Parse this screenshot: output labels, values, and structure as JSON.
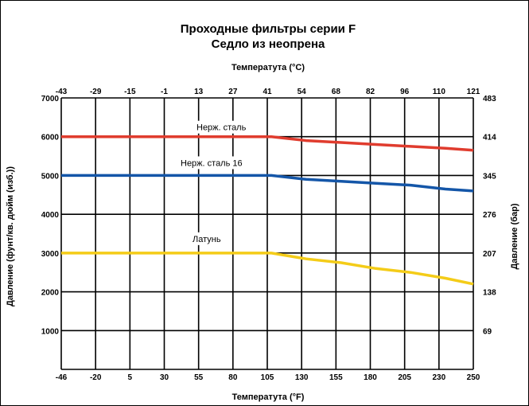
{
  "chart_data": {
    "type": "line",
    "title": "Проходные фильтры серии F",
    "subtitle": "Седло из неопрена",
    "x_top_label": "Температута (°C)",
    "x_bottom_label": "Температута (°F)",
    "y_left_label": "Давление (фунт/кв. дюйм (изб.))",
    "y_right_label": "Давление (бар)",
    "xlim": [
      -46,
      250
    ],
    "ylim": [
      0,
      7000
    ],
    "grid": true,
    "x_ticks_bottom": [
      "-46",
      "-20",
      "5",
      "30",
      "55",
      "80",
      "105",
      "130",
      "155",
      "180",
      "205",
      "230",
      "250"
    ],
    "x_ticks_top": [
      "-43",
      "-29",
      "-15",
      "-1",
      "13",
      "27",
      "41",
      "54",
      "68",
      "82",
      "96",
      "110",
      "121"
    ],
    "y_ticks_left": [
      "",
      "1000",
      "2000",
      "3000",
      "4000",
      "5000",
      "6000",
      "7000"
    ],
    "y_ticks_right": [
      "",
      "69",
      "138",
      "207",
      "276",
      "345",
      "414",
      "483"
    ],
    "series": [
      {
        "name": "Нерж. сталь",
        "color": "#e03c2e",
        "x": [
          -46,
          105,
          130,
          155,
          180,
          205,
          230,
          250
        ],
        "y": [
          6000,
          6000,
          5900,
          5850,
          5800,
          5750,
          5700,
          5650
        ]
      },
      {
        "name": "Нерж. сталь 16",
        "color": "#1456a8",
        "x": [
          -46,
          105,
          130,
          155,
          180,
          205,
          230,
          250
        ],
        "y": [
          5000,
          5000,
          4900,
          4850,
          4800,
          4750,
          4650,
          4600
        ]
      },
      {
        "name": "Латунь",
        "color": "#f4cc18",
        "x": [
          -46,
          105,
          130,
          155,
          180,
          205,
          230,
          250
        ],
        "y": [
          3000,
          3000,
          2850,
          2750,
          2600,
          2500,
          2350,
          2200
        ]
      }
    ]
  }
}
